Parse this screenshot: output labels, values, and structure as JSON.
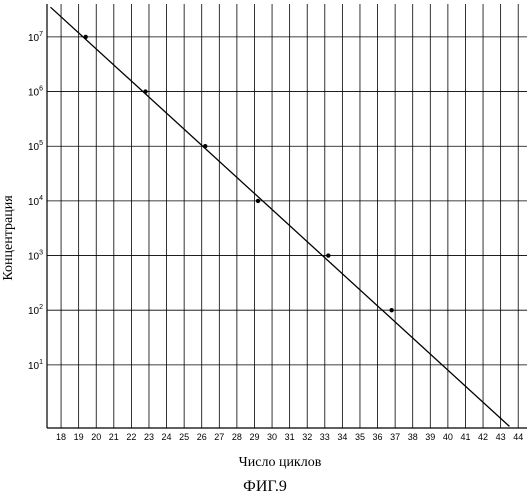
{
  "chart_data": {
    "type": "scatter",
    "xlabel": "Число циклов",
    "ylabel": "Концентрация",
    "x_ticks": [
      18,
      19,
      20,
      21,
      22,
      23,
      24,
      25,
      26,
      27,
      28,
      29,
      30,
      31,
      32,
      33,
      34,
      35,
      36,
      37,
      38,
      39,
      40,
      41,
      42,
      43,
      44
    ],
    "y_ticks": [
      {
        "value": 10,
        "base": "10",
        "exp": "1"
      },
      {
        "value": 100,
        "base": "10",
        "exp": "2"
      },
      {
        "value": 1000,
        "base": "10",
        "exp": "3"
      },
      {
        "value": 10000,
        "base": "10",
        "exp": "4"
      },
      {
        "value": 100000,
        "base": "10",
        "exp": "5"
      },
      {
        "value": 1000000,
        "base": "10",
        "exp": "6"
      },
      {
        "value": 10000000,
        "base": "10",
        "exp": "7"
      }
    ],
    "y_scale": "log",
    "xlim": [
      17.2,
      44.5
    ],
    "ylim": [
      0.7,
      40000000
    ],
    "grid": true,
    "points": [
      {
        "x": 19.4,
        "y": 10000000
      },
      {
        "x": 22.8,
        "y": 1000000
      },
      {
        "x": 26.2,
        "y": 100000
      },
      {
        "x": 29.2,
        "y": 10000
      },
      {
        "x": 33.2,
        "y": 1000
      },
      {
        "x": 36.8,
        "y": 100
      }
    ],
    "fit_line": [
      {
        "x": 17.4,
        "y": 35000000
      },
      {
        "x": 43.5,
        "y": 0.75
      }
    ]
  },
  "figure_label": "ФИГ.9"
}
